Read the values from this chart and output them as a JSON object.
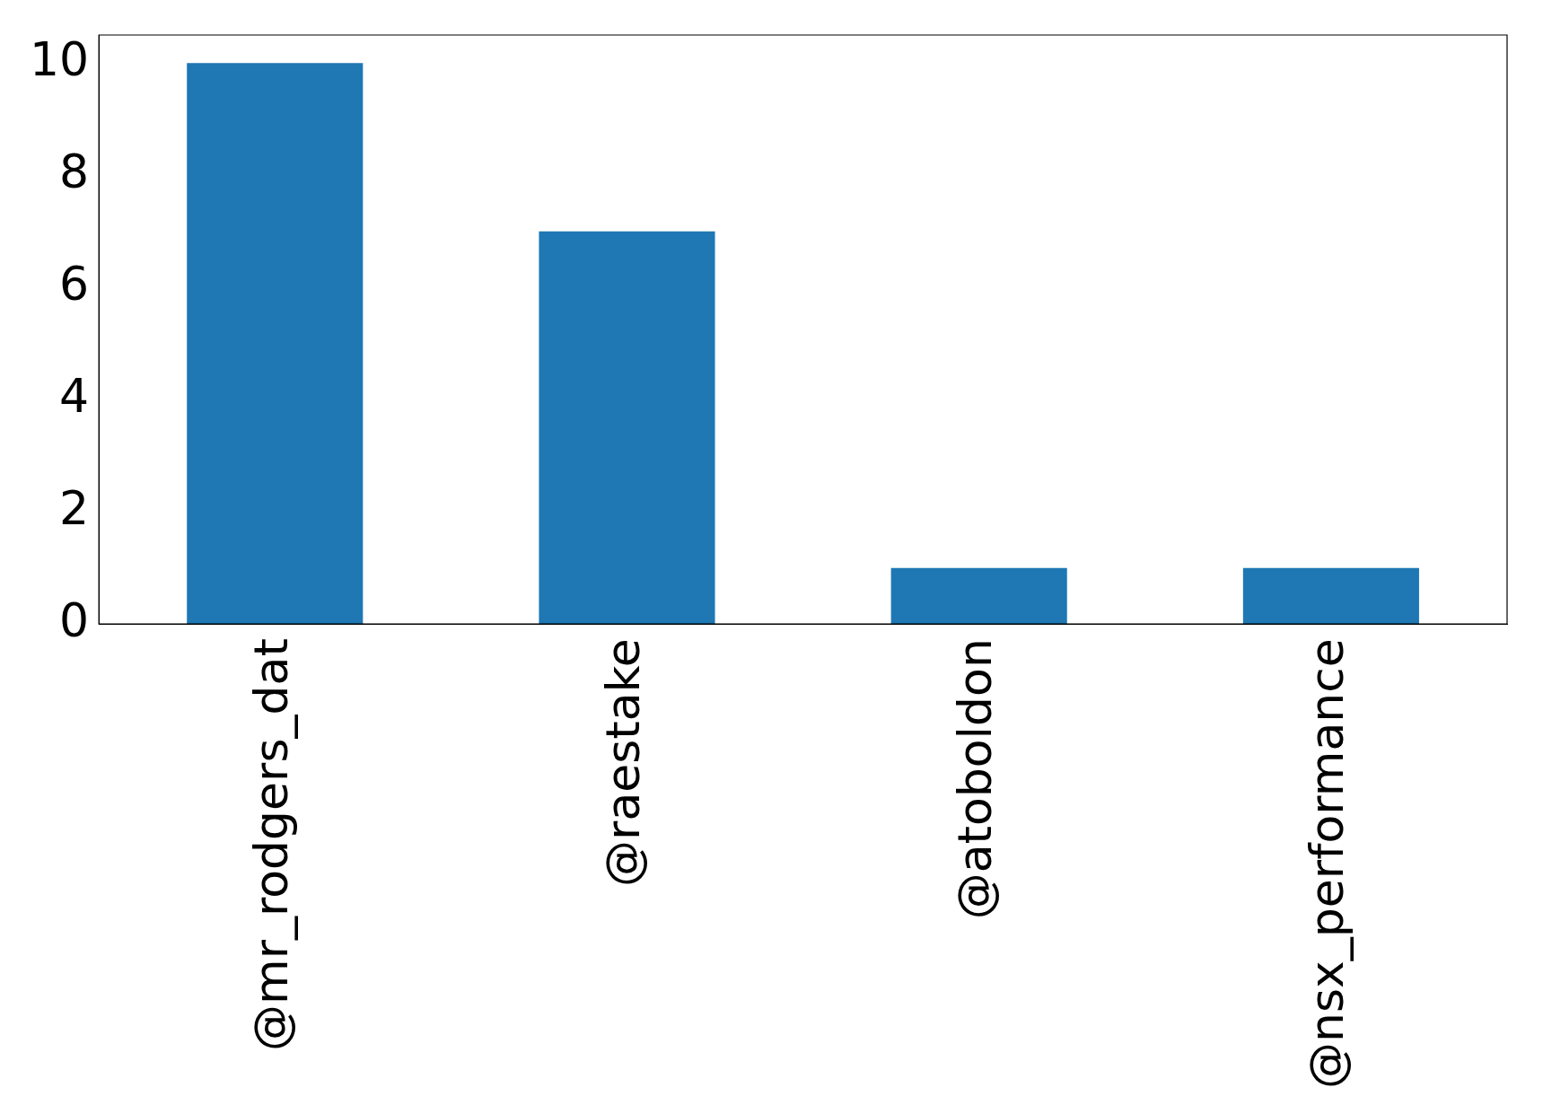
{
  "chart_data": {
    "type": "bar",
    "categories": [
      "@mr_rodgers_dat",
      "@raestake",
      "@atoboldon",
      "@nsx_performance"
    ],
    "values": [
      10,
      7,
      1,
      1
    ],
    "color": "#1f77b4",
    "ylim": [
      0,
      10.5
    ],
    "yticks": [
      0,
      2,
      4,
      6,
      8,
      10
    ],
    "grid": false,
    "legend": false
  }
}
